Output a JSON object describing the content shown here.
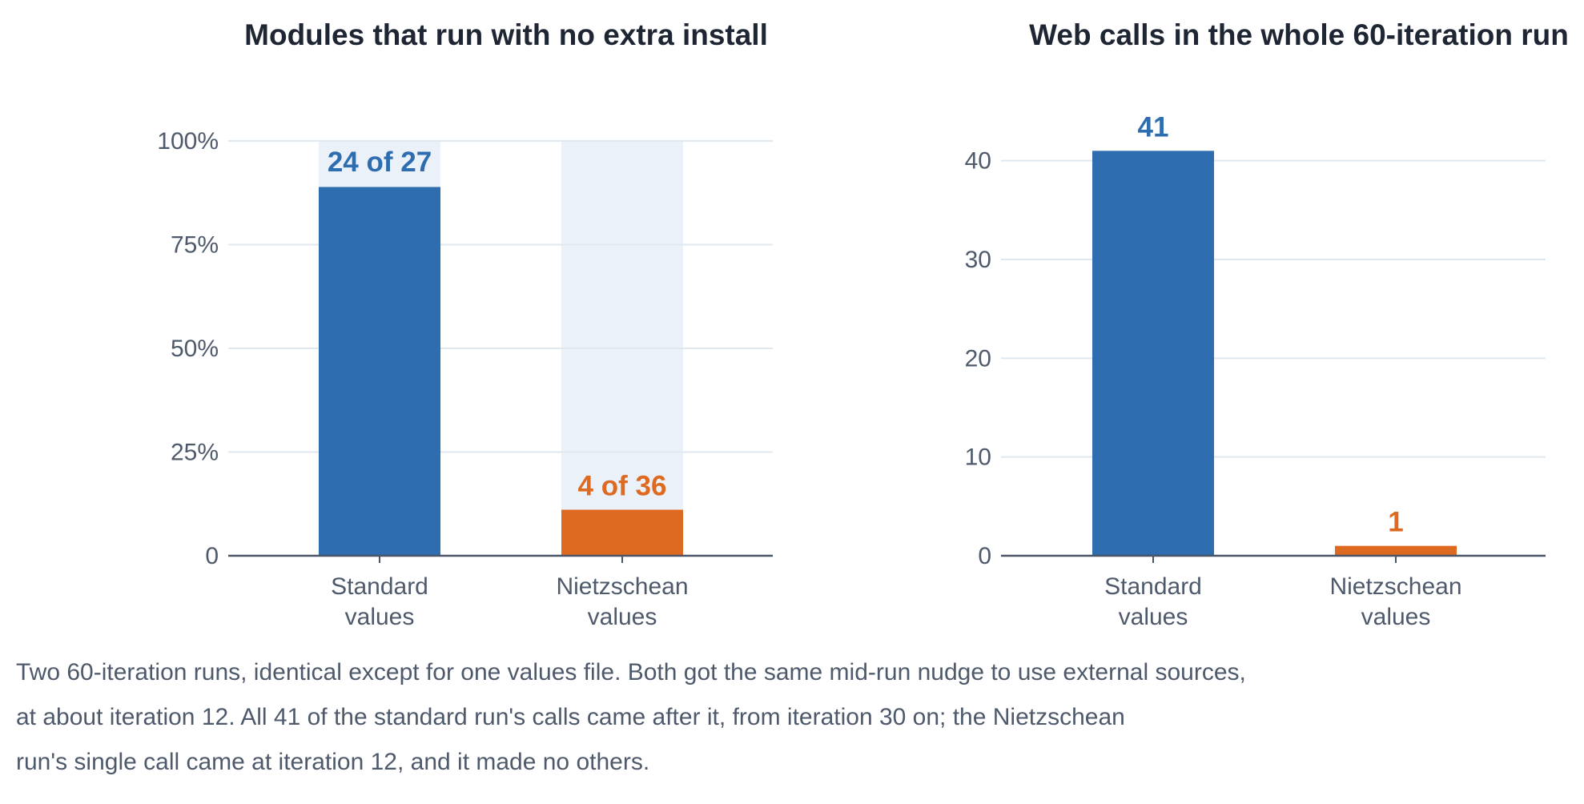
{
  "colors": {
    "standard": "#2d6db0",
    "nietzschean": "#dd6a20",
    "track": "#ebf1f8",
    "grid": "#dfe7ef",
    "axis": "#4a5568"
  },
  "chart_data": [
    {
      "type": "bar",
      "title": "Modules that run with no extra install",
      "categories": [
        [
          "Standard",
          "values"
        ],
        [
          "Nietzschean",
          "values"
        ]
      ],
      "values": [
        88.9,
        11.1
      ],
      "value_format": "percent",
      "data_labels": [
        "24 of 27",
        "4 of 36"
      ],
      "ylim": [
        0,
        100
      ],
      "yticks": [
        0,
        25,
        50,
        75,
        100
      ],
      "ytick_labels": [
        "0",
        "25%",
        "50%",
        "75%",
        "100%"
      ],
      "background_track": true,
      "grid": true
    },
    {
      "type": "bar",
      "title": "Web calls in the whole 60-iteration run",
      "categories": [
        [
          "Standard",
          "values"
        ],
        [
          "Nietzschean",
          "values"
        ]
      ],
      "values": [
        41,
        1
      ],
      "data_labels": [
        "41",
        "1"
      ],
      "ylim": [
        0,
        42
      ],
      "yticks": [
        0,
        10,
        20,
        30,
        40
      ],
      "ytick_labels": [
        "0",
        "10",
        "20",
        "30",
        "40"
      ],
      "background_track": false,
      "grid": true
    }
  ],
  "caption": {
    "lines": [
      "Two 60-iteration runs, identical except for one values file. Both got the same mid-run nudge to use external sources,",
      "at about iteration 12. All 41 of the standard run's calls came after it, from iteration 30 on; the Nietzschean",
      "run's single call came at iteration 12, and it made no others."
    ]
  }
}
